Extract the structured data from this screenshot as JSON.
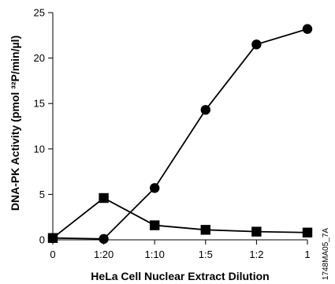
{
  "chart_data": {
    "type": "line",
    "title": "",
    "xlabel": "HeLa Cell Nuclear Extract Dilution",
    "ylabel": "DNA-PK Activity (pmol ³²P/min/µl)",
    "categories": [
      "0",
      "1:20",
      "1:10",
      "1:5",
      "1:2",
      "1"
    ],
    "ylim": [
      0,
      25
    ],
    "yticks": [
      0,
      5,
      10,
      15,
      20,
      25
    ],
    "grid": false,
    "legend": "none",
    "series": [
      {
        "marker": "circle",
        "values": [
          0.2,
          0.1,
          5.7,
          14.3,
          21.5,
          23.2
        ]
      },
      {
        "marker": "square",
        "values": [
          0.2,
          4.6,
          1.6,
          1.1,
          0.9,
          0.8
        ]
      }
    ]
  },
  "figure_code": "1748MA05_7A",
  "colors": {
    "ink": "#000000",
    "background": "#ffffff"
  }
}
